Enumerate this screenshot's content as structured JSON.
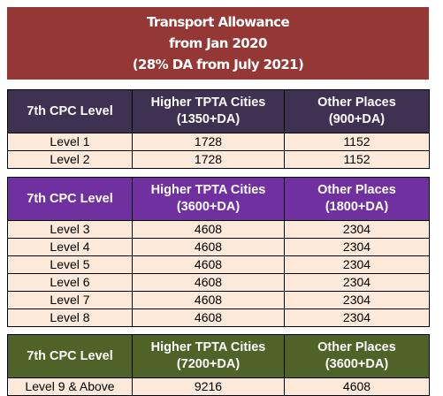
{
  "banner": {
    "line1": "Transport Allowance",
    "line2": "from Jan 2020",
    "line3": "(28% DA from July 2021)",
    "color": "#953734"
  },
  "tables": [
    {
      "header_color": "#3f3151",
      "col1": "7th CPC Level",
      "col2_line1": "Higher TPTA Cities",
      "col2_line2": "(1350+DA)",
      "col3_line1": "Other Places",
      "col3_line2": "(900+DA)",
      "rows": [
        {
          "level": "Level 1",
          "higher": "1728",
          "other": "1152"
        },
        {
          "level": "Level 2",
          "higher": "1728",
          "other": "1152"
        }
      ]
    },
    {
      "header_color": "#7030a0",
      "col1": "7th CPC Level",
      "col2_line1": "Higher TPTA Cities",
      "col2_line2": "(3600+DA)",
      "col3_line1": "Other Places",
      "col3_line2": "(1800+DA)",
      "rows": [
        {
          "level": "Level 3",
          "higher": "4608",
          "other": "2304"
        },
        {
          "level": "Level 4",
          "higher": "4608",
          "other": "2304"
        },
        {
          "level": "Level 5",
          "higher": "4608",
          "other": "2304"
        },
        {
          "level": "Level 6",
          "higher": "4608",
          "other": "2304"
        },
        {
          "level": "Level 7",
          "higher": "4608",
          "other": "2304"
        },
        {
          "level": "Level 8",
          "higher": "4608",
          "other": "2304"
        }
      ]
    },
    {
      "header_color": "#4f6228",
      "col1": "7th CPC Level",
      "col2_line1": "Higher TPTA Cities",
      "col2_line2": "(7200+DA)",
      "col3_line1": "Other Places",
      "col3_line2": "(3600+DA)",
      "rows": [
        {
          "level": "Level 9 & Above",
          "higher": "9216",
          "other": "4608"
        }
      ]
    }
  ],
  "row_bg": "#fde9d9"
}
